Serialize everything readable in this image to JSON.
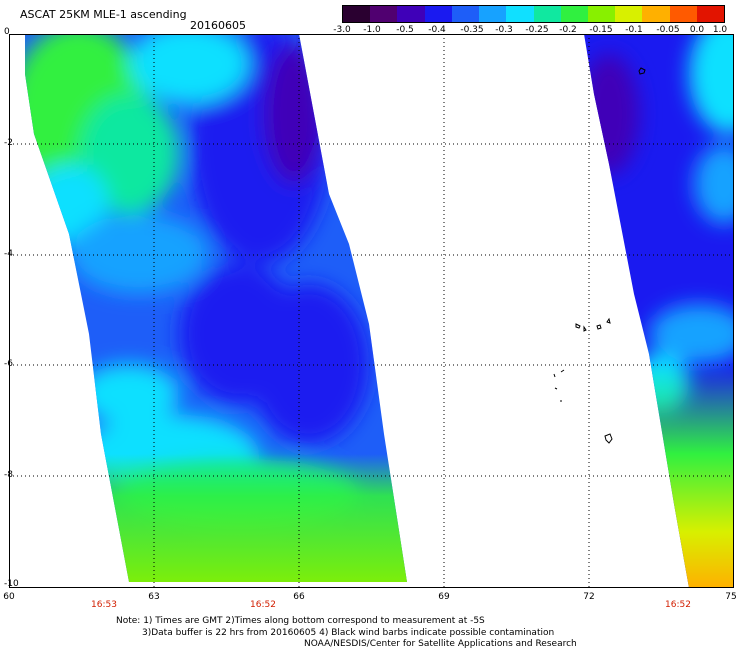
{
  "header": {
    "product": "ASCAT 25KM MLE-1 ascending",
    "date": "20160605"
  },
  "colorbar": {
    "labels": [
      "-3.0",
      "-1.0",
      "-0.5",
      "-0.4",
      "-0.35",
      "-0.3",
      "-0.25",
      "-0.2",
      "-0.15",
      "-0.1",
      "-0.05",
      "0.0",
      "1.0"
    ],
    "colors": [
      "#2a0030",
      "#500070",
      "#3f00b8",
      "#1a1af0",
      "#1e5ef8",
      "#17a2ff",
      "#10e0ff",
      "#10e8a0",
      "#30f040",
      "#88f000",
      "#d8f000",
      "#ffb000",
      "#ff5a00",
      "#e21400"
    ]
  },
  "map": {
    "lat_ticks": [
      "0",
      "-2",
      "-4",
      "-6",
      "-8",
      "-10"
    ],
    "lon_ticks": [
      "60",
      "63",
      "66",
      "69",
      "72",
      "75"
    ],
    "pass_times": [
      "16:53",
      "16:52",
      "16:52"
    ]
  },
  "notes": {
    "line1": "Note: 1) Times are GMT 2)Times along bottom correspond to measurement at -5S",
    "line2": "3)Data buffer is 22 hrs from 20160605 4) Black wind barbs indicate possible contamination",
    "line3": "NOAA/NESDIS/Center for Satellite Applications and Research"
  }
}
